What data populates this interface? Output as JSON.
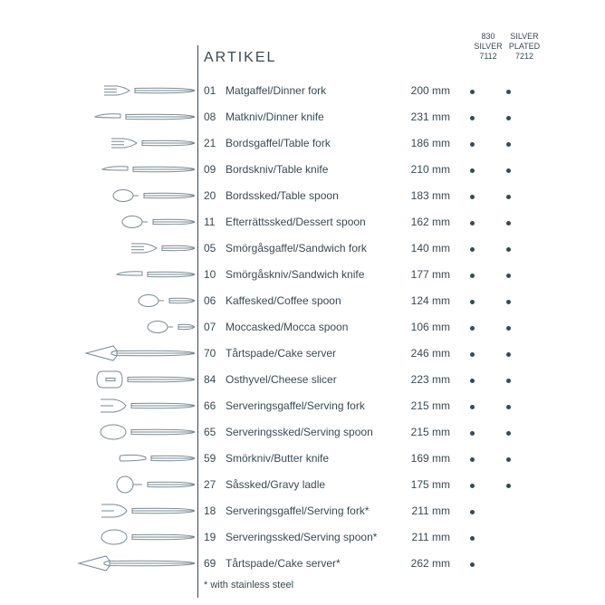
{
  "title": "ARTIKEL",
  "headers": {
    "col1_line1": "830",
    "col1_line2": "SILVER",
    "col1_line3": "7112",
    "col2_line1": "SILVER",
    "col2_line2": "PLATED",
    "col2_line3": "7212"
  },
  "items": [
    {
      "code": "01",
      "name": "Matgaffel/Dinner fork",
      "size": "200 mm",
      "d1": true,
      "d2": true,
      "svg": "fork",
      "len": 100
    },
    {
      "code": "08",
      "name": "Matkniv/Dinner knife",
      "size": "231 mm",
      "d1": true,
      "d2": true,
      "svg": "knife",
      "len": 110
    },
    {
      "code": "21",
      "name": "Bordsgaffel/Table fork",
      "size": "186 mm",
      "d1": true,
      "d2": true,
      "svg": "fork",
      "len": 92
    },
    {
      "code": "09",
      "name": "Bordskniv/Table knife",
      "size": "210 mm",
      "d1": true,
      "d2": true,
      "svg": "knife",
      "len": 102
    },
    {
      "code": "20",
      "name": "Bordssked/Table spoon",
      "size": "183 mm",
      "d1": true,
      "d2": true,
      "svg": "spoon",
      "len": 90
    },
    {
      "code": "11",
      "name": "Efterrättssked/Dessert spoon",
      "size": "162 mm",
      "d1": true,
      "d2": true,
      "svg": "spoon",
      "len": 80
    },
    {
      "code": "05",
      "name": "Smörgåsgaffel/Sandwich fork",
      "size": "140 mm",
      "d1": true,
      "d2": true,
      "svg": "fork",
      "len": 70
    },
    {
      "code": "10",
      "name": "Smörgåskniv/Sandwich knife",
      "size": "177 mm",
      "d1": true,
      "d2": true,
      "svg": "knife",
      "len": 86
    },
    {
      "code": "06",
      "name": "Kaffesked/Coffee spoon",
      "size": "124 mm",
      "d1": true,
      "d2": true,
      "svg": "spoon",
      "len": 62
    },
    {
      "code": "07",
      "name": "Moccasked/Mocca spoon",
      "size": "106 mm",
      "d1": true,
      "d2": true,
      "svg": "spoon",
      "len": 52
    },
    {
      "code": "70",
      "name": "Tårtspade/Cake server",
      "size": "246 mm",
      "d1": true,
      "d2": true,
      "svg": "cake",
      "len": 120
    },
    {
      "code": "84",
      "name": "Osthyvel/Cheese slicer",
      "size": "223 mm",
      "d1": true,
      "d2": true,
      "svg": "cheese",
      "len": 108
    },
    {
      "code": "66",
      "name": "Serveringsgaffel/Serving fork",
      "size": "215 mm",
      "d1": true,
      "d2": true,
      "svg": "servefork",
      "len": 104
    },
    {
      "code": "65",
      "name": "Serveringssked/Serving spoon",
      "size": "215 mm",
      "d1": true,
      "d2": true,
      "svg": "servespoon",
      "len": 104
    },
    {
      "code": "59",
      "name": "Smörkniv/Butter knife",
      "size": "169 mm",
      "d1": true,
      "d2": true,
      "svg": "butter",
      "len": 82
    },
    {
      "code": "27",
      "name": "Såssked/Gravy ladle",
      "size": "175 mm",
      "d1": true,
      "d2": true,
      "svg": "ladle",
      "len": 86
    },
    {
      "code": "18",
      "name": "Serveringsgaffel/Serving fork*",
      "size": "211 mm",
      "d1": true,
      "d2": false,
      "svg": "servefork",
      "len": 103
    },
    {
      "code": "19",
      "name": "Serveringssked/Serving spoon*",
      "size": "211 mm",
      "d1": true,
      "d2": false,
      "svg": "servespoon",
      "len": 103
    },
    {
      "code": "69",
      "name": "Tårtspade/Cake server*",
      "size": "262 mm",
      "d1": true,
      "d2": false,
      "svg": "cake",
      "len": 128
    }
  ],
  "footnote": "* with stainless steel"
}
